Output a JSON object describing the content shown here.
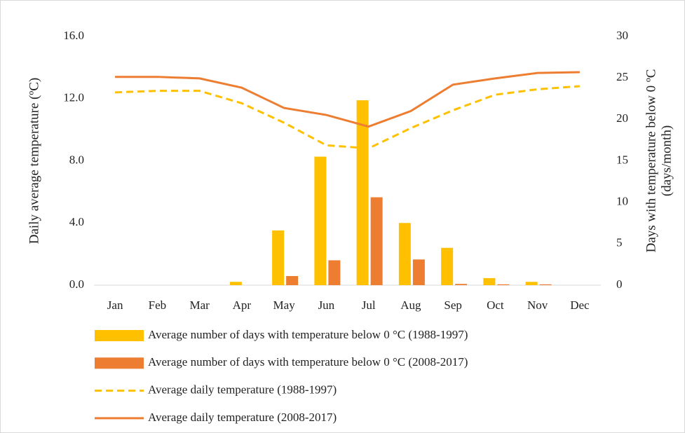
{
  "chart_data": {
    "type": "combo",
    "ylabel": "Daily average temperature (ºC)",
    "y2label": [
      "Days with temperature below 0 ºC",
      "(days/month)"
    ],
    "categories": [
      "Jan",
      "Feb",
      "Mar",
      "Apr",
      "May",
      "Jun",
      "Jul",
      "Aug",
      "Sep",
      "Oct",
      "Nov",
      "Dec"
    ],
    "ylim": [
      0,
      16
    ],
    "yticks": [
      {
        "value": 0,
        "label": "0.0"
      },
      {
        "value": 4,
        "label": "4.0"
      },
      {
        "value": 8,
        "label": "8.0"
      },
      {
        "value": 12,
        "label": "12.0"
      },
      {
        "value": 16,
        "label": "16.0"
      }
    ],
    "y2lim": [
      0,
      30
    ],
    "y2ticks": [
      0,
      5,
      10,
      15,
      20,
      25,
      30
    ],
    "series": [
      {
        "name": "Average number of days with temperature below 0 °C (1988-1997)",
        "type": "bar",
        "axis": "y2",
        "color": "#ffc000",
        "values": [
          0,
          0,
          0,
          0.4,
          6.6,
          15.5,
          22.3,
          7.5,
          4.5,
          0.85,
          0.4,
          0
        ]
      },
      {
        "name": "Average number of days with temperature below 0 °C (2008-2017)",
        "type": "bar",
        "axis": "y2",
        "color": "#ed7d31",
        "values": [
          0,
          0,
          0,
          0,
          1.1,
          3.0,
          10.6,
          3.1,
          0.15,
          0.1,
          0.1,
          0
        ]
      },
      {
        "name": "Average daily temperature (1988-1997)",
        "type": "line",
        "axis": "y",
        "color": "#ffc000",
        "dashed": true,
        "values": [
          12.4,
          12.5,
          12.5,
          11.7,
          10.45,
          9.0,
          8.8,
          10.1,
          11.25,
          12.25,
          12.6,
          12.8
        ]
      },
      {
        "name": "Average daily temperature (2008-2017)",
        "type": "line",
        "axis": "y",
        "color": "#ed7d31",
        "dashed": false,
        "values": [
          13.4,
          13.4,
          13.3,
          12.7,
          11.4,
          10.95,
          10.2,
          11.2,
          12.9,
          13.3,
          13.65,
          13.7
        ]
      }
    ]
  }
}
